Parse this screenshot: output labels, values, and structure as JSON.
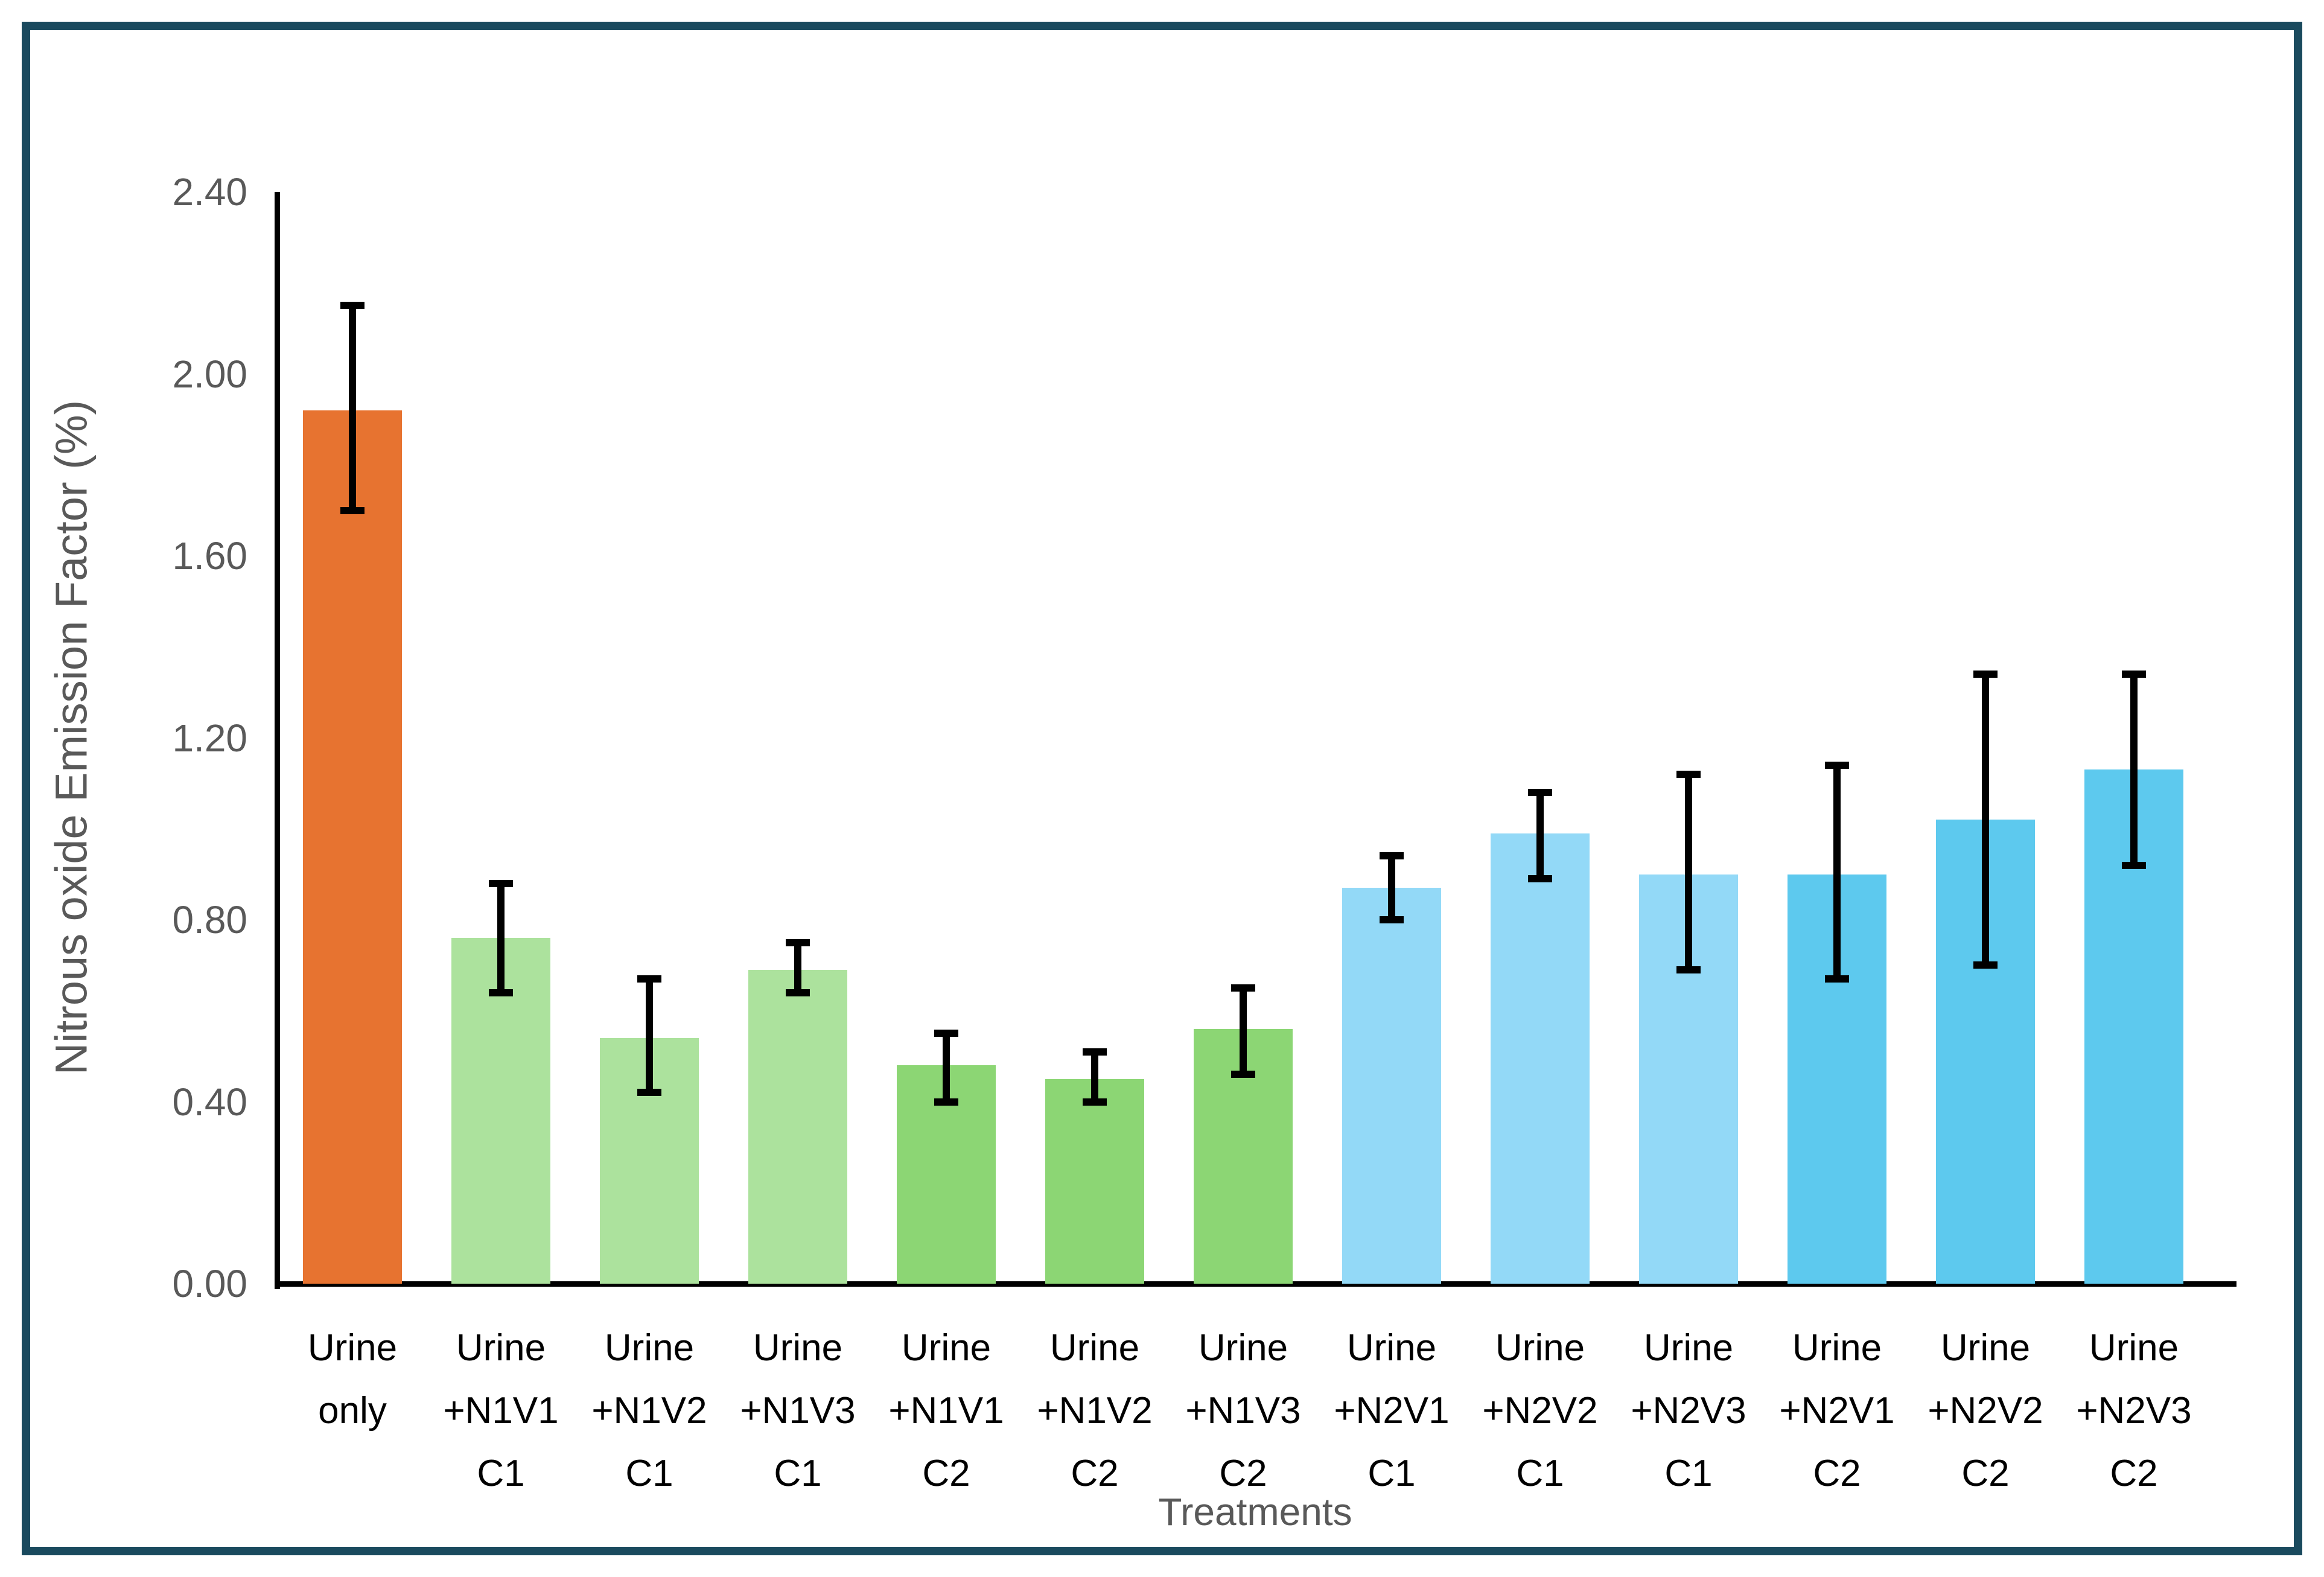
{
  "frame": {
    "border_color": "#1A4A5E"
  },
  "chart_data": {
    "type": "bar",
    "title": "",
    "xlabel": "Treatments",
    "ylabel": "Nitrous oxide Emission Factor (%)",
    "ylim": [
      0,
      2.4
    ],
    "ytick_step": 0.4,
    "ytick_labels": [
      "0.00",
      "0.40",
      "0.80",
      "1.20",
      "1.60",
      "2.00",
      "2.40"
    ],
    "grid": false,
    "legend": "none",
    "categories": [
      [
        "Urine",
        "only"
      ],
      [
        "Urine",
        "+N1V1",
        "C1"
      ],
      [
        "Urine",
        "+N1V2",
        "C1"
      ],
      [
        "Urine",
        "+N1V3",
        "C1"
      ],
      [
        "Urine",
        "+N1V1",
        "C2"
      ],
      [
        "Urine",
        "+N1V2",
        "C2"
      ],
      [
        "Urine",
        "+N1V3",
        "C2"
      ],
      [
        "Urine",
        "+N2V1",
        "C1"
      ],
      [
        "Urine",
        "+N2V2",
        "C1"
      ],
      [
        "Urine",
        "+N2V3",
        "C1"
      ],
      [
        "Urine",
        "+N2V1",
        "C2"
      ],
      [
        "Urine",
        "+N2V2",
        "C2"
      ],
      [
        "Urine",
        "+N2V3",
        "C2"
      ]
    ],
    "values": [
      1.92,
      0.76,
      0.54,
      0.69,
      0.48,
      0.45,
      0.56,
      0.87,
      0.99,
      0.9,
      0.9,
      1.02,
      1.13
    ],
    "error_low": [
      1.7,
      0.64,
      0.42,
      0.64,
      0.4,
      0.4,
      0.46,
      0.8,
      0.89,
      0.69,
      0.67,
      0.7,
      0.92
    ],
    "error_high": [
      2.15,
      0.88,
      0.67,
      0.75,
      0.55,
      0.51,
      0.65,
      0.94,
      1.08,
      1.12,
      1.14,
      1.34,
      1.34
    ],
    "bar_colors": [
      "#E77330",
      "#ACE29D",
      "#ACE29D",
      "#ACE29D",
      "#8CD674",
      "#8CD674",
      "#8CD674",
      "#93D9F7",
      "#93D9F7",
      "#93D9F7",
      "#5DC9EE",
      "#5DC9EE",
      "#5DC9EE"
    ],
    "colors": {
      "orange": "#E77330",
      "light_green": "#ACE29D",
      "green": "#8CD674",
      "light_blue": "#93D9F7",
      "blue": "#5DC9EE",
      "error_bar": "#000000",
      "axis_text": "#595959",
      "axis_line": "#000000",
      "border": "#1A4A5E"
    }
  }
}
